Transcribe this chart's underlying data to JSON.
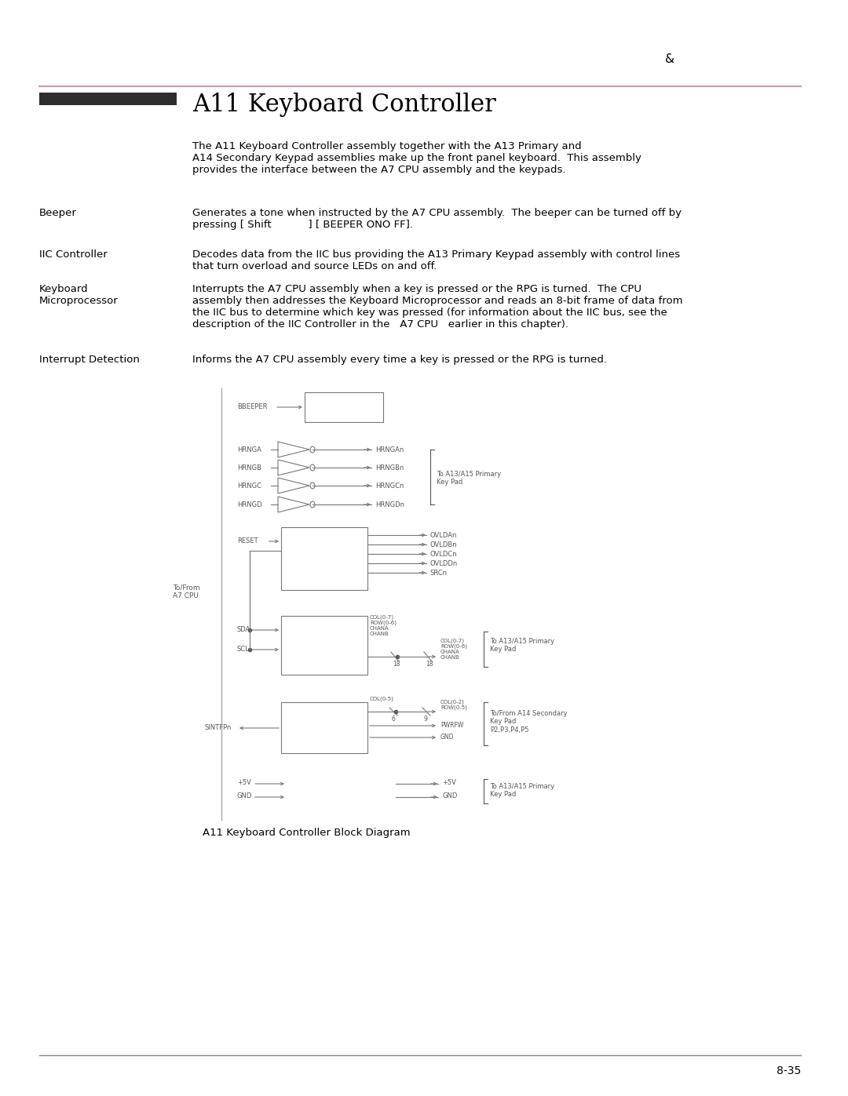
{
  "page_number": "8-35",
  "header_symbol": "&",
  "title": "A11 Keyboard Controller",
  "title_bar_color": "#2d2d2d",
  "line_color": "#c0a0b0",
  "diagram_caption": "A11 Keyboard Controller Block Diagram",
  "footer_line_color": "#888888",
  "intro": "The A11 Keyboard Controller assembly together with the A13 Primary and\nA14 Secondary Keypad assemblies make up the front panel keyboard.  This assembly\nprovides the interface between the A7 CPU assembly and the keypads.",
  "beeper_label": "Beeper",
  "beeper_text": "Generates a tone when instructed by the A7 CPU assembly.  The beeper can be turned off by\npressing [ Shift           ] [ BEEPER ONO FF].",
  "iic_label": "IIC Controller",
  "iic_text": "Decodes data from the IIC bus providing the A13 Primary Keypad assembly with control lines\nthat turn overload and source LEDs on and off.",
  "kb_label": "Keyboard\nMicroprocessor",
  "kb_text": "Interrupts the A7 CPU assembly when a key is pressed or the RPG is turned.  The CPU\nassembly then addresses the Keyboard Microprocessor and reads an 8-bit frame of data from\nthe IIC bus to determine which key was pressed (for information about the IIC bus, see the\ndescription of the IIC Controller in the   A7 CPU   earlier in this chapter).",
  "int_label": "Interrupt Detection",
  "int_text": "Informs the A7 CPU assembly every time a key is pressed or the RPG is turned."
}
